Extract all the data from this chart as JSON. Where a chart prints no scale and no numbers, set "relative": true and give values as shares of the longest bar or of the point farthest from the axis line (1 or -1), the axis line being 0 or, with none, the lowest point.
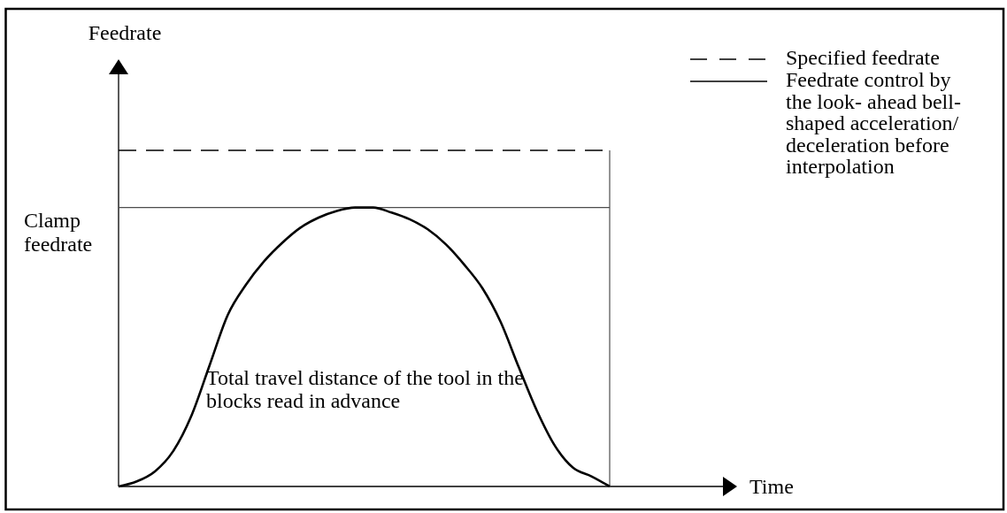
{
  "chart_data": {
    "type": "line",
    "ylabel": "Feedrate",
    "relative": true,
    "legend": "top right",
    "line_style": "solid",
    "categories": [
      null,
      null,
      null,
      null,
      null,
      null,
      null,
      null,
      null,
      null,
      null,
      null,
      null,
      null,
      null,
      null,
      null,
      null,
      null,
      null,
      null,
      null,
      null,
      null,
      null,
      null,
      null,
      null
    ],
    "series": [
      {
        "name": "Specified feedrate",
        "color": "#000000",
        "line_style": "dashed",
        "values": [
          1,
          1,
          1,
          1,
          1,
          1,
          1,
          1,
          1,
          1,
          1,
          1,
          1,
          1,
          1,
          1,
          1,
          1,
          1,
          1,
          1,
          1,
          1,
          1,
          1,
          1,
          1,
          1
        ]
      },
      {
        "name": "Feedrate control by the look- ahead bell-shaped acceleration/deceleration before interpolation",
        "color": "#000000",
        "values": [
          0,
          0.015,
          0.045,
          0.105,
          0.21,
          0.36,
          0.51,
          0.6,
          0.67,
          0.725,
          0.77,
          0.8,
          0.82,
          0.83,
          0.83,
          0.815,
          0.795,
          0.765,
          0.72,
          0.66,
          0.59,
          0.49,
          0.355,
          0.225,
          0.12,
          0.055,
          0.03,
          0
        ]
      }
    ],
    "ref_lines": [
      {
        "axis": "y",
        "value": 0.83,
        "label": "Clamp feedrate",
        "color": "#4d4d4d"
      }
    ],
    "annotations": [
      "Total travel distance of the tool in the blocks read in advance",
      "Time"
    ]
  }
}
